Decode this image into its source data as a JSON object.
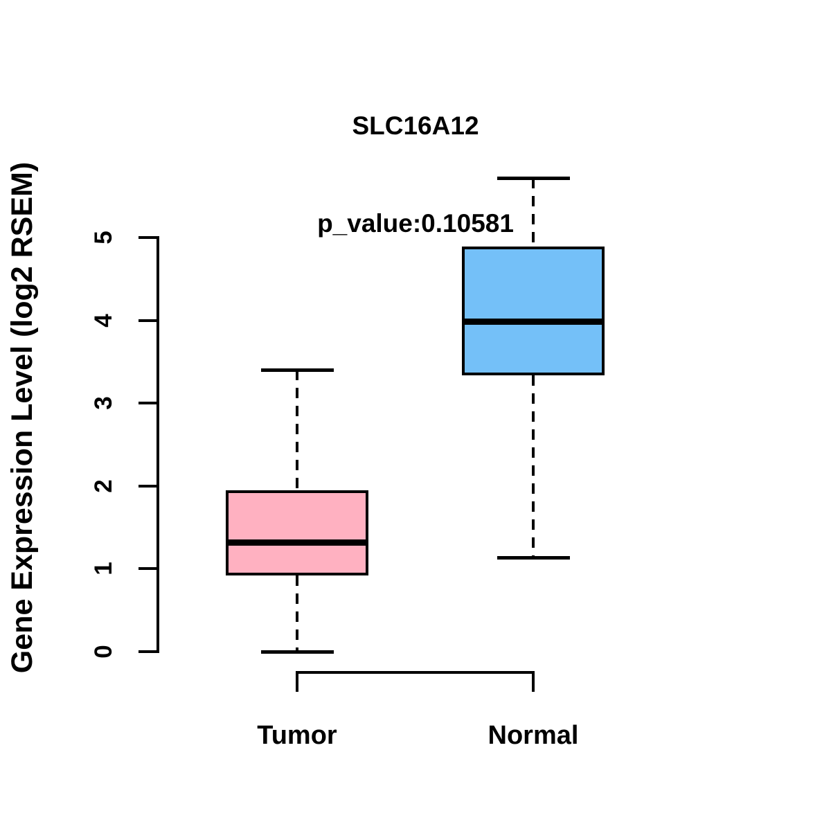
{
  "chart_data": {
    "type": "boxplot",
    "title": "SLC16A12",
    "subtitle": "p_value:0.10581",
    "ylabel": "Gene Expression Level (log2 RSEM)",
    "xlabel": "",
    "categories": [
      "Tumor",
      "Normal"
    ],
    "series": [
      {
        "name": "Tumor",
        "whisker_low": 0.0,
        "q1": 0.92,
        "median": 1.32,
        "q3": 1.95,
        "whisker_high": 3.4,
        "fill_color": "#FFB1C1"
      },
      {
        "name": "Normal",
        "whisker_low": 1.14,
        "q1": 3.34,
        "median": 3.98,
        "q3": 4.89,
        "whisker_high": 5.72,
        "fill_color": "#74C0F8"
      }
    ],
    "yticks": [
      0,
      1,
      2,
      3,
      4,
      5
    ],
    "ylim": [
      0,
      5
    ],
    "grid": false,
    "legend": "none",
    "line_color": "#000000",
    "background_color": "#FFFFFF"
  }
}
